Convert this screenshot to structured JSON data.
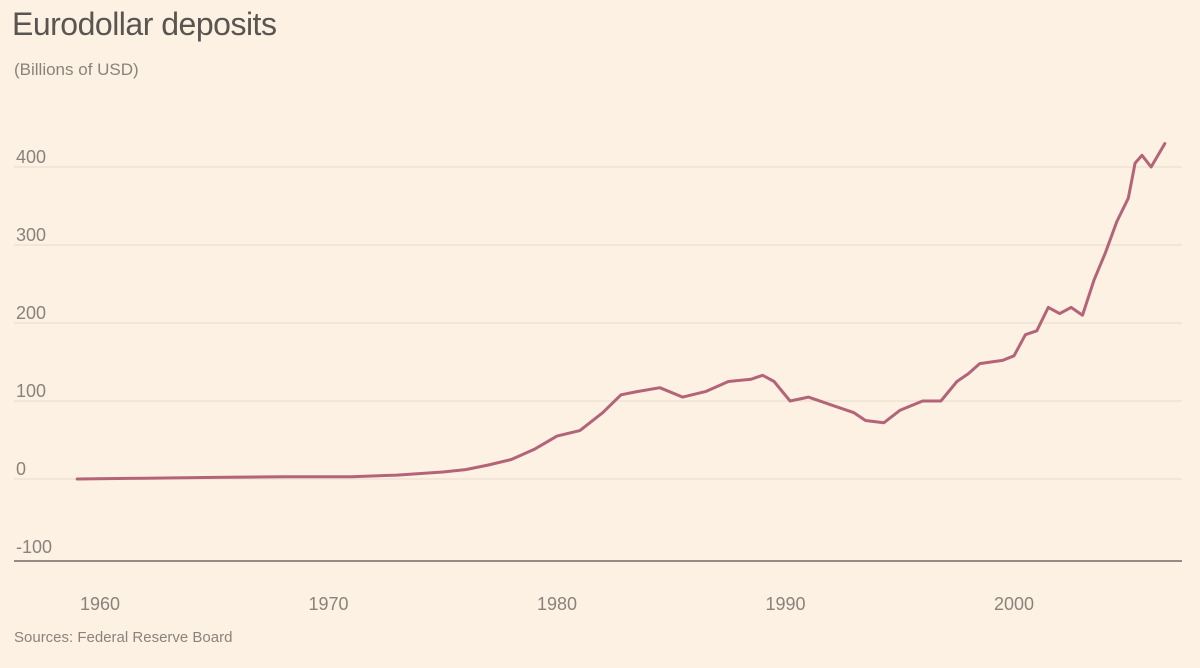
{
  "chart_data": {
    "type": "line",
    "title": "Eurodollar deposits",
    "subtitle": "(Billions of USD)",
    "source": "Sources: Federal Reserve Board",
    "xlabel": "",
    "ylabel": "",
    "xlim": [
      1958.5,
      2007.5
    ],
    "ylim": [
      -100,
      450
    ],
    "xticks": [
      1960,
      1970,
      1980,
      1990,
      2000
    ],
    "yticks": [
      -100,
      0,
      100,
      200,
      300,
      400
    ],
    "grid": true,
    "colors": {
      "line": "#b36478",
      "background": "#fdf1e3",
      "grid": "#e6dccf",
      "baseline": "#6f6a65"
    },
    "series": [
      {
        "name": "",
        "x": [
          1959,
          1962,
          1965,
          1968,
          1971,
          1973,
          1975,
          1976,
          1977,
          1978,
          1979,
          1980,
          1981,
          1982,
          1982.8,
          1983.5,
          1984.5,
          1985.5,
          1986.5,
          1987.5,
          1988.5,
          1989,
          1989.5,
          1990.2,
          1991,
          1992,
          1993,
          1993.5,
          1994.3,
          1995,
          1996,
          1996.8,
          1997.5,
          1998,
          1998.5,
          1999,
          1999.5,
          2000,
          2000.5,
          2001,
          2001.5,
          2002,
          2002.5,
          2003,
          2003.5,
          2004,
          2004.5,
          2005,
          2005.3,
          2005.6,
          2006,
          2006.6
        ],
        "values": [
          0,
          1,
          2,
          3,
          3,
          5,
          9,
          12,
          18,
          25,
          38,
          55,
          62,
          85,
          108,
          112,
          117,
          105,
          112,
          125,
          128,
          133,
          125,
          100,
          105,
          95,
          85,
          75,
          72,
          88,
          100,
          100,
          125,
          135,
          148,
          150,
          152,
          158,
          185,
          190,
          220,
          212,
          220,
          210,
          255,
          290,
          330,
          360,
          405,
          415,
          400,
          430
        ]
      }
    ]
  }
}
